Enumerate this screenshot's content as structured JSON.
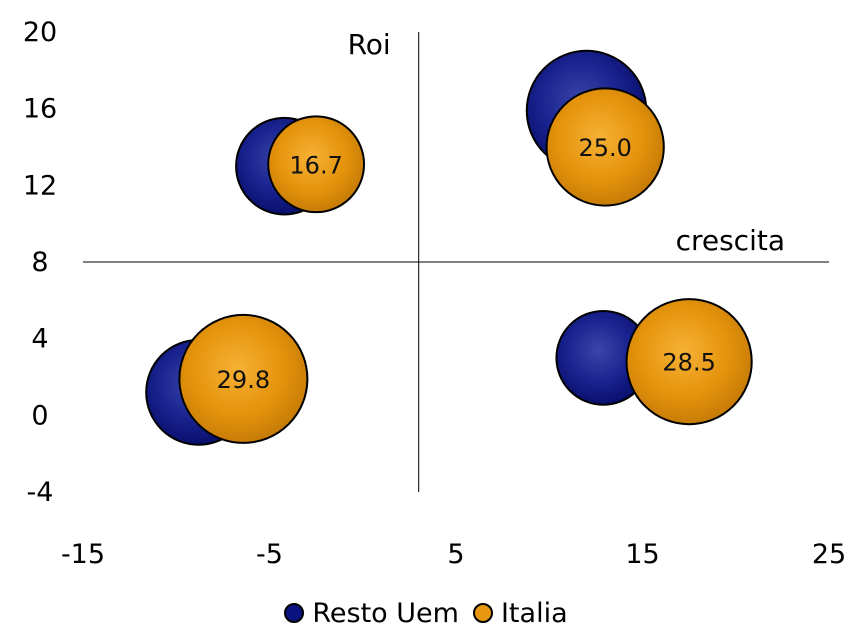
{
  "chart_data": {
    "type": "bubble",
    "title": "",
    "xlabel": "crescita",
    "ylabel": "Roi",
    "xlim": [
      -15,
      25
    ],
    "ylim": [
      -4,
      20
    ],
    "x_ticks": [
      -15,
      -5,
      5,
      15,
      25
    ],
    "y_ticks": [
      -4,
      0,
      4,
      8,
      12,
      16,
      20
    ],
    "axis_cross": {
      "x": 3,
      "y": 8
    },
    "series": [
      {
        "name": "Resto Uem",
        "color": "#0a1380",
        "points": [
          {
            "x": -4.2,
            "y": 13.0,
            "size": 17.0
          },
          {
            "x": 12.0,
            "y": 15.9,
            "size": 26.0
          },
          {
            "x": -8.8,
            "y": 1.2,
            "size": 20.0
          },
          {
            "x": 12.9,
            "y": 3.0,
            "size": 16.0
          }
        ]
      },
      {
        "name": "Italia",
        "color": "#e6960f",
        "points": [
          {
            "x": -2.5,
            "y": 13.1,
            "size": 16.7,
            "label": "16.7"
          },
          {
            "x": 13.0,
            "y": 14.0,
            "size": 25.0,
            "label": "25.0"
          },
          {
            "x": -6.4,
            "y": 1.9,
            "size": 29.8,
            "label": "29.8"
          },
          {
            "x": 17.5,
            "y": 2.8,
            "size": 28.5,
            "label": "28.5"
          }
        ]
      }
    ],
    "legend": {
      "position": "bottom",
      "entries": [
        "Resto Uem",
        "Italia"
      ]
    }
  }
}
